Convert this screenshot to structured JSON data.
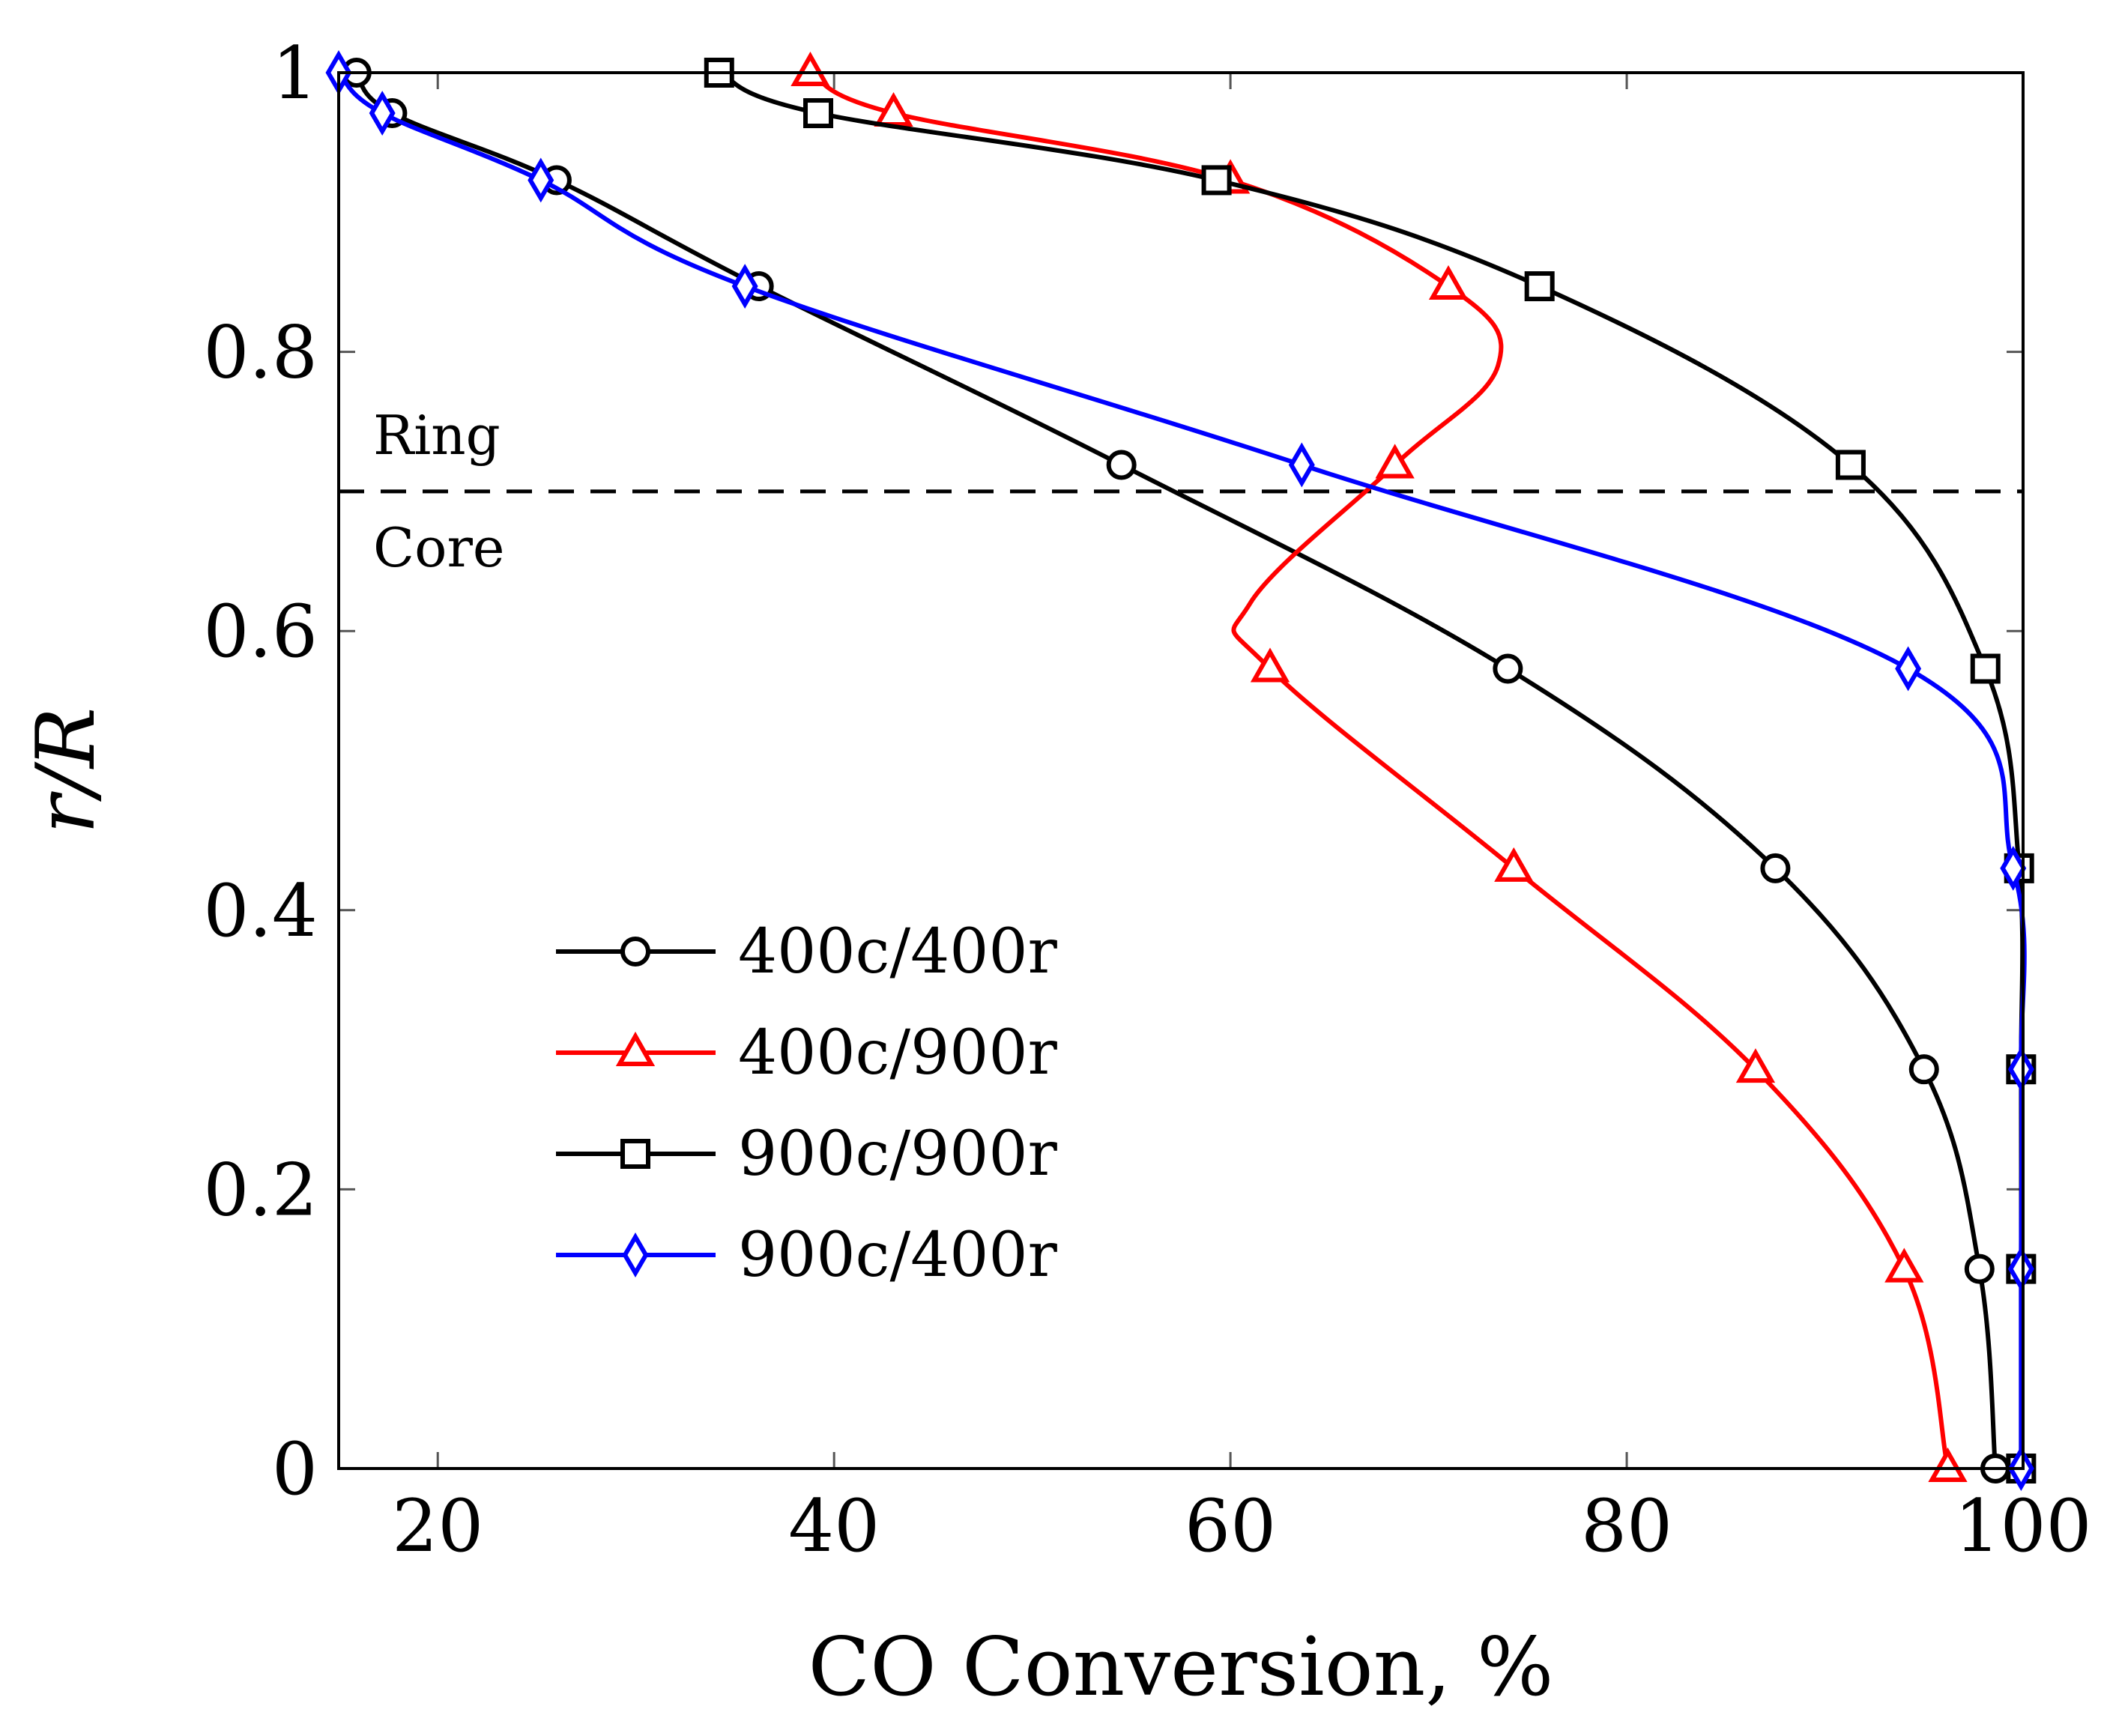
{
  "chart_data": {
    "type": "line",
    "xlabel": "CO Conversion, %",
    "ylabel": "r/R",
    "xlim": [
      15,
      100
    ],
    "ylim": [
      0,
      1
    ],
    "xticks": [
      20,
      40,
      60,
      80,
      100
    ],
    "yticks": [
      0,
      0.2,
      0.4,
      0.6,
      0.8,
      1
    ],
    "xtick_labels": [
      "20",
      "40",
      "60",
      "80",
      "100"
    ],
    "ytick_labels": [
      "0",
      "0.2",
      "0.4",
      "0.6",
      "0.8",
      "1"
    ],
    "grid": false,
    "legend_position": "lower-left",
    "reference_line": {
      "y": 0.7,
      "style": "dashed",
      "label_above": "Ring",
      "label_below": "Core"
    },
    "series": [
      {
        "name": "400c/400r",
        "color": "#000000",
        "marker": "circle",
        "points": [
          [
            15.9,
            1.0
          ],
          [
            17.7,
            0.971
          ],
          [
            26.0,
            0.923
          ],
          [
            36.2,
            0.847
          ],
          [
            54.5,
            0.719
          ],
          [
            74.0,
            0.573
          ],
          [
            87.5,
            0.43
          ],
          [
            95.0,
            0.286
          ],
          [
            97.8,
            0.143
          ],
          [
            98.6,
            0.0
          ]
        ]
      },
      {
        "name": "400c/900r",
        "color": "#ff0000",
        "marker": "triangle",
        "points": [
          [
            38.8,
            1.0
          ],
          [
            43.0,
            0.971
          ],
          [
            60.0,
            0.923
          ],
          [
            71.0,
            0.847
          ],
          [
            73.5,
            0.79
          ],
          [
            68.3,
            0.719
          ],
          [
            61.0,
            0.62
          ],
          [
            62.0,
            0.573
          ],
          [
            74.3,
            0.43
          ],
          [
            86.5,
            0.286
          ],
          [
            94.0,
            0.143
          ],
          [
            96.2,
            0.0
          ]
        ]
      },
      {
        "name": "900c/900r",
        "color": "#000000",
        "marker": "square",
        "points": [
          [
            34.2,
            1.0
          ],
          [
            39.2,
            0.971
          ],
          [
            59.3,
            0.923
          ],
          [
            75.6,
            0.847
          ],
          [
            91.3,
            0.719
          ],
          [
            98.1,
            0.573
          ],
          [
            99.8,
            0.43
          ],
          [
            99.9,
            0.286
          ],
          [
            99.9,
            0.143
          ],
          [
            99.9,
            0.0
          ]
        ]
      },
      {
        "name": "900c/400r",
        "color": "#0000ff",
        "marker": "diamond",
        "points": [
          [
            15.0,
            1.0
          ],
          [
            17.2,
            0.971
          ],
          [
            25.2,
            0.923
          ],
          [
            35.5,
            0.847
          ],
          [
            63.6,
            0.719
          ],
          [
            94.2,
            0.573
          ],
          [
            99.5,
            0.43
          ],
          [
            99.9,
            0.286
          ],
          [
            99.9,
            0.143
          ],
          [
            99.9,
            0.0
          ]
        ]
      }
    ]
  }
}
